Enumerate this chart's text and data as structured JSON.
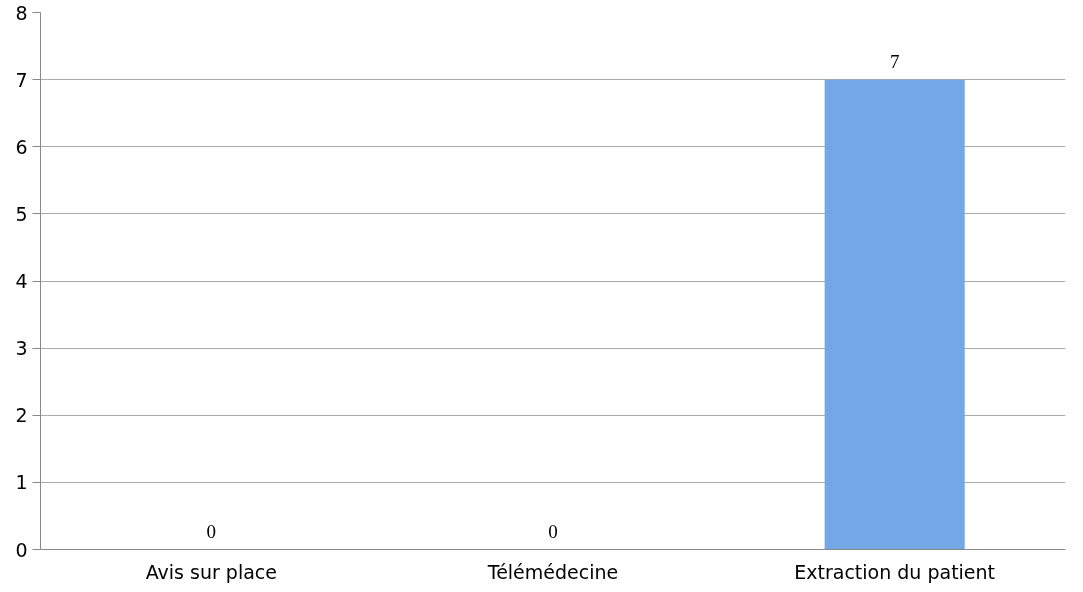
{
  "chart_data": {
    "type": "bar",
    "categories": [
      "Avis sur place",
      "Télémédecine",
      "Extraction du patient"
    ],
    "values": [
      0,
      0,
      7
    ],
    "color": "#73a7e6",
    "ylim": [
      0,
      8
    ],
    "yticks": [
      0,
      1,
      2,
      3,
      4,
      5,
      6,
      7,
      8
    ],
    "grid": "y",
    "data_labels": true
  }
}
